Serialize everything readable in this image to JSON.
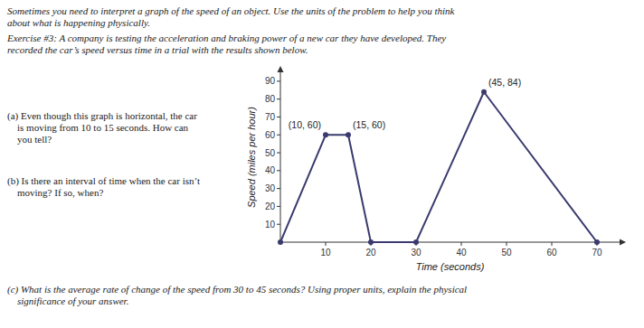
{
  "chart_data": {
    "type": "line",
    "title": "Sometimes you need to interpret a graph of the speed of an object. Use the units of the problem to help you think\nabout what is happening physically.",
    "subtitle": "Exercise #3: A company is testing the acceleration and braking power of a new car they have developed. They\nrecorded the car’s speed versus time in a trial with the results shown below.",
    "x_label": "Time (seconds)",
    "y_label": "Speed (miles per hour)",
    "x": [
      0,
      10,
      15,
      20,
      30,
      45,
      70
    ],
    "values": [
      0,
      60,
      60,
      0,
      0,
      84,
      0
    ],
    "color": "#3a3a6e",
    "marker": "circle",
    "xlim": [
      0,
      75
    ],
    "ylim": [
      0,
      95
    ],
    "xticks": [
      10,
      20,
      30,
      40,
      50,
      60,
      70
    ],
    "yticks": [
      10,
      20,
      30,
      40,
      50,
      60,
      70,
      80,
      90
    ],
    "grid": false,
    "annotations": [
      {
        "text": "(10, 60)",
        "x": 10,
        "y": 60
      },
      {
        "text": "(15, 60)",
        "x": 15,
        "y": 60
      },
      {
        "text": "(45, 84)",
        "x": 45,
        "y": 84
      },
      {
        "text": "(a) Even though this graph is horizontal, the car\n    is moving from 10 to 15 seconds. How can\n    you tell?"
      },
      {
        "text": "(b) Is there an interval of time when the car isn’t\n    moving? If so, when?"
      },
      {
        "text": "(c) What is the average rate of change of the speed from 30 to 45 seconds? Using proper units, explain the physical\n    significance of your answer."
      }
    ]
  }
}
